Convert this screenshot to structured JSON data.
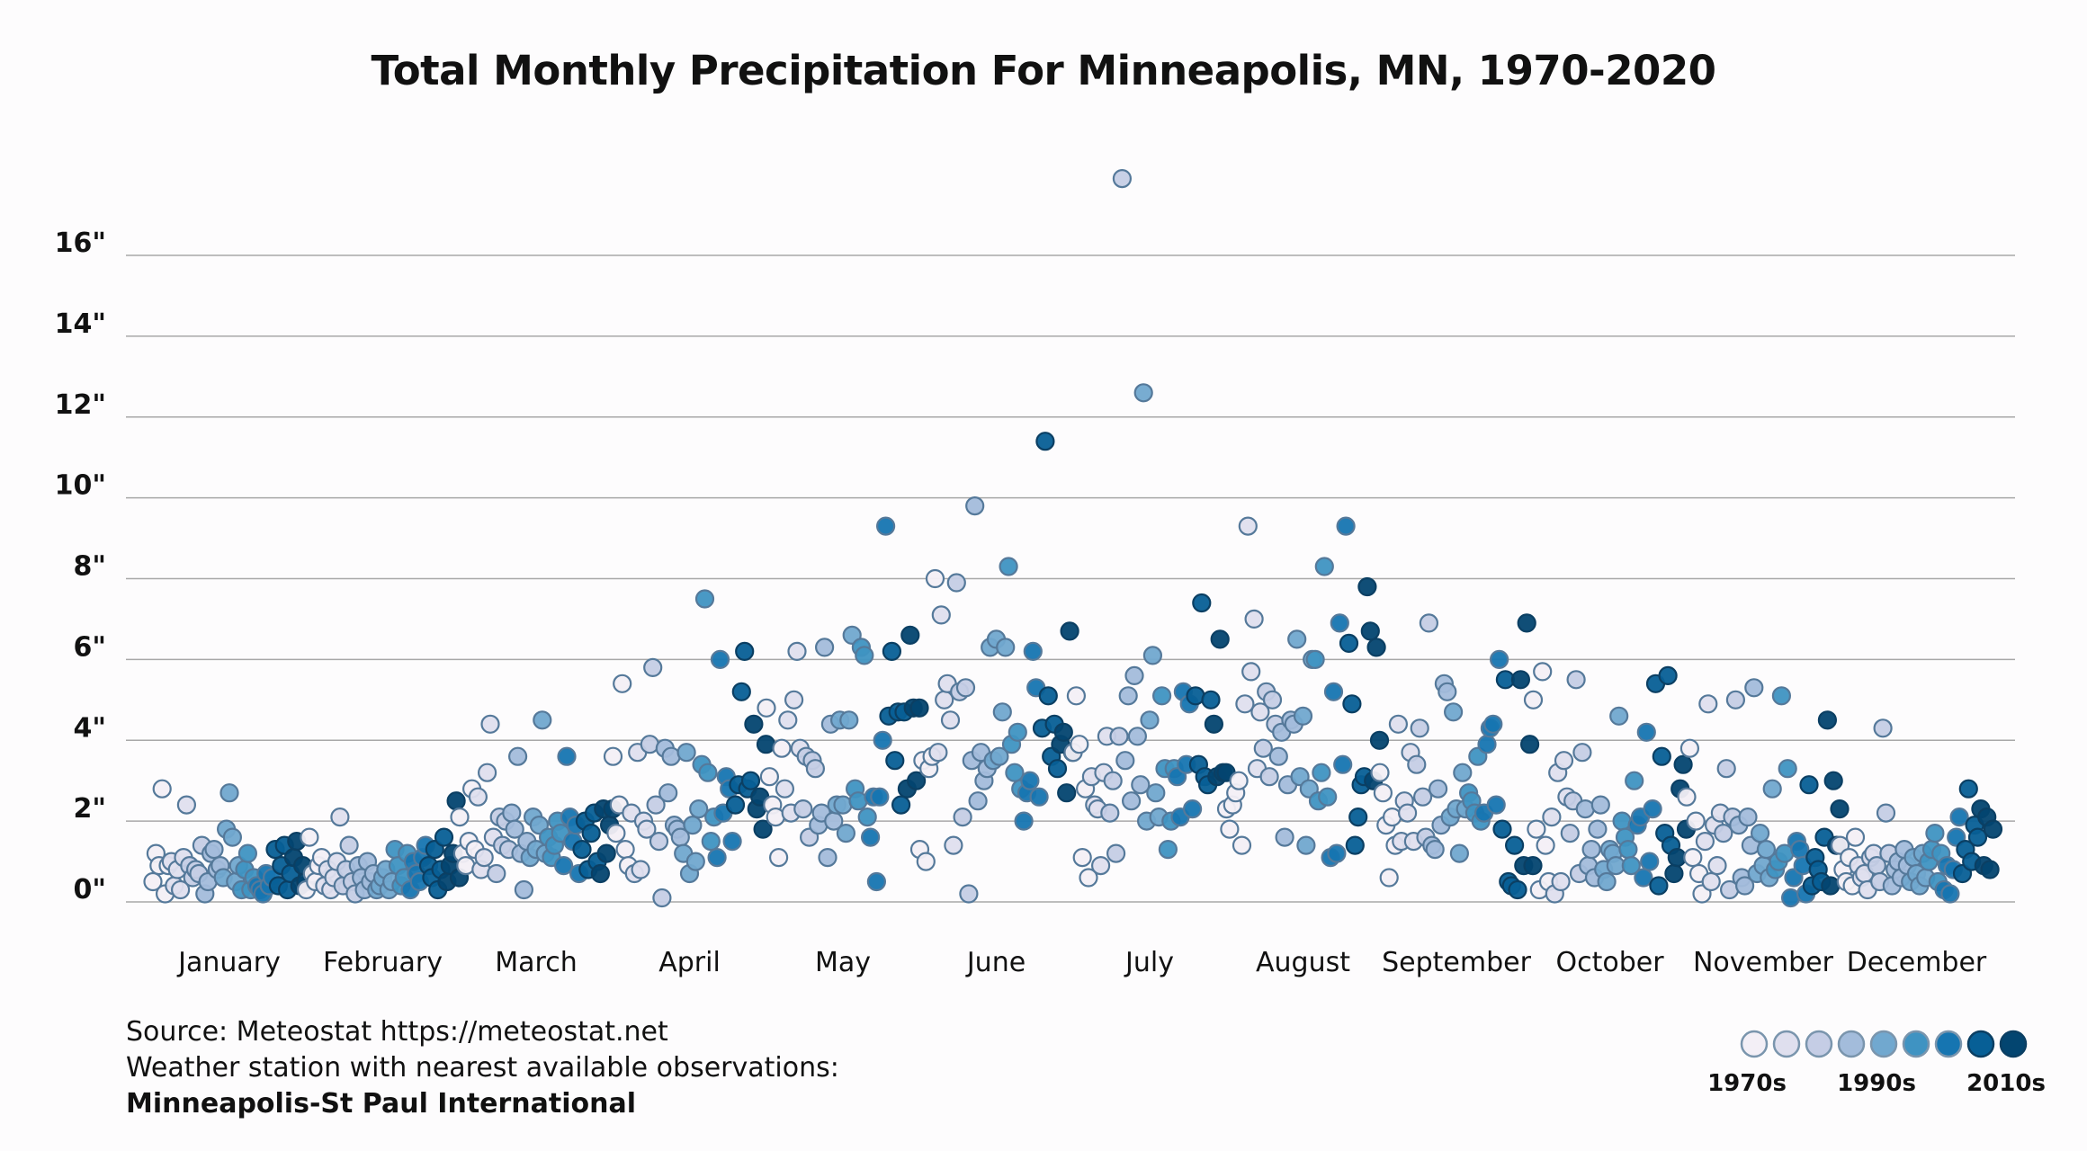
{
  "chart_data": {
    "type": "scatter",
    "title": "Total Monthly Precipitation For Minneapolis, MN, 1970-2020",
    "xlabel": "",
    "ylabel": "",
    "ylim": [
      0,
      17
    ],
    "yticks": [
      0,
      2,
      4,
      6,
      8,
      10,
      12,
      14,
      16
    ],
    "ytick_labels": [
      "0\"",
      "2\"",
      "4\"",
      "6\"",
      "8\"",
      "10\"",
      "12\"",
      "14\"",
      "16\""
    ],
    "grid": true,
    "categories": [
      "January",
      "February",
      "March",
      "April",
      "May",
      "June",
      "July",
      "August",
      "September",
      "October",
      "November",
      "December"
    ],
    "years": [
      1970,
      2020
    ],
    "legend": {
      "placement": "bottom-right",
      "labels": [
        "1970s",
        "1990s",
        "2010s"
      ],
      "colors": [
        "#f3eff6",
        "#dfdfee",
        "#c5cde5",
        "#a3bcdb",
        "#71a8cf",
        "#3f93c2",
        "#1675b1",
        "#075f96",
        "#034570"
      ]
    },
    "series": [
      {
        "name": "January",
        "values": [
          0.5,
          1.2,
          0.9,
          2.8,
          0.2,
          0.9,
          1.0,
          0.4,
          0.8,
          0.3,
          1.1,
          2.4,
          0.9,
          0.6,
          0.8,
          0.7,
          1.4,
          0.2,
          0.5,
          1.2,
          1.3,
          0.8,
          0.9,
          0.6,
          1.8,
          2.7,
          1.6,
          0.5,
          0.9,
          0.3,
          0.8,
          1.2,
          0.3,
          0.6,
          0.4,
          0.3,
          0.2,
          0.7,
          0.4,
          0.6,
          1.3,
          0.4,
          0.9,
          1.4,
          0.3,
          0.7,
          1.1,
          1.5,
          0.4,
          0.9,
          0.5
        ]
      },
      {
        "name": "February",
        "values": [
          0.3,
          1.6,
          0.7,
          0.5,
          0.9,
          1.1,
          0.4,
          0.8,
          0.3,
          0.6,
          1.0,
          2.1,
          0.4,
          0.8,
          1.4,
          0.5,
          0.2,
          0.9,
          0.6,
          0.3,
          1.0,
          0.5,
          0.7,
          0.3,
          0.4,
          0.6,
          0.8,
          0.3,
          0.5,
          1.3,
          0.9,
          0.4,
          0.6,
          1.2,
          0.3,
          1.0,
          0.7,
          0.5,
          1.1,
          1.4,
          0.9,
          0.6,
          1.3,
          0.3,
          0.8,
          1.6,
          0.5,
          0.9,
          1.2,
          2.5,
          0.6
        ]
      },
      {
        "name": "March",
        "values": [
          2.1,
          1.2,
          0.9,
          1.5,
          2.8,
          1.3,
          2.6,
          0.8,
          1.1,
          3.2,
          4.4,
          1.6,
          0.7,
          2.1,
          1.4,
          2.0,
          1.3,
          2.2,
          1.8,
          3.6,
          1.2,
          0.3,
          1.5,
          1.1,
          2.1,
          1.3,
          1.9,
          4.5,
          1.2,
          1.6,
          1.1,
          1.4,
          2.0,
          1.7,
          0.9,
          3.6,
          2.1,
          1.5,
          1.9,
          0.7,
          1.3,
          2.0,
          0.8,
          1.7,
          2.2,
          1.0,
          0.7,
          2.3,
          1.2,
          1.9,
          2.3
        ]
      },
      {
        "name": "April",
        "values": [
          3.6,
          1.7,
          2.4,
          5.4,
          1.3,
          0.9,
          2.2,
          0.7,
          3.7,
          0.8,
          2.0,
          1.8,
          3.9,
          5.8,
          2.4,
          1.5,
          0.1,
          3.8,
          2.7,
          3.6,
          1.9,
          1.8,
          1.6,
          1.2,
          3.7,
          0.7,
          1.9,
          1.0,
          2.3,
          3.4,
          7.5,
          3.2,
          1.5,
          2.1,
          1.1,
          6.0,
          2.2,
          3.1,
          2.8,
          1.5,
          2.4,
          2.9,
          5.2,
          6.2,
          2.8,
          3.0,
          4.4,
          2.3,
          2.6,
          1.8,
          3.9
        ]
      },
      {
        "name": "May",
        "values": [
          4.8,
          3.1,
          2.4,
          2.1,
          1.1,
          3.8,
          2.8,
          4.5,
          2.2,
          5.0,
          6.2,
          3.8,
          2.3,
          3.6,
          1.6,
          3.5,
          3.3,
          1.9,
          2.2,
          6.3,
          1.1,
          4.4,
          2.0,
          2.4,
          4.5,
          2.4,
          1.7,
          4.5,
          6.6,
          2.8,
          2.5,
          6.3,
          6.1,
          2.1,
          1.6,
          2.6,
          0.5,
          2.6,
          4.0,
          9.3,
          4.6,
          6.2,
          3.5,
          4.7,
          2.4,
          4.7,
          2.8,
          6.6,
          4.8,
          3.0,
          4.8
        ]
      },
      {
        "name": "June",
        "values": [
          1.3,
          3.5,
          1.0,
          3.3,
          3.6,
          8.0,
          3.7,
          7.1,
          5.0,
          5.4,
          4.5,
          1.4,
          7.9,
          5.2,
          2.1,
          5.3,
          0.2,
          3.5,
          9.8,
          2.5,
          3.7,
          3.0,
          3.3,
          6.3,
          3.5,
          6.5,
          3.6,
          4.7,
          6.3,
          8.3,
          3.9,
          3.2,
          4.2,
          2.8,
          2.0,
          2.7,
          3.0,
          6.2,
          5.3,
          2.6,
          4.3,
          11.4,
          5.1,
          3.6,
          4.4,
          3.3,
          3.9,
          4.2,
          2.7,
          6.7,
          3.7
        ]
      },
      {
        "name": "July",
        "values": [
          3.7,
          5.1,
          3.9,
          1.1,
          2.8,
          0.6,
          3.1,
          2.4,
          2.3,
          0.9,
          3.2,
          4.1,
          2.2,
          3.0,
          1.2,
          4.1,
          17.9,
          3.5,
          5.1,
          2.5,
          5.6,
          4.1,
          2.9,
          12.6,
          2.0,
          4.5,
          6.1,
          2.7,
          2.1,
          5.1,
          3.3,
          1.3,
          2.0,
          3.3,
          3.1,
          2.1,
          5.2,
          3.4,
          4.9,
          2.3,
          5.1,
          3.4,
          7.4,
          3.1,
          2.9,
          5.0,
          4.4,
          3.1,
          6.5,
          3.2,
          3.2
        ]
      },
      {
        "name": "August",
        "values": [
          2.3,
          1.8,
          2.4,
          2.7,
          3.0,
          1.4,
          4.9,
          9.3,
          5.7,
          7.0,
          3.3,
          4.7,
          3.8,
          5.2,
          3.1,
          5.0,
          4.4,
          3.6,
          4.2,
          1.6,
          2.9,
          4.5,
          4.4,
          6.5,
          3.1,
          4.6,
          1.4,
          2.8,
          6.0,
          6.0,
          2.5,
          3.2,
          8.3,
          2.6,
          1.1,
          5.2,
          1.2,
          6.9,
          3.4,
          9.3,
          6.4,
          4.9,
          1.4,
          2.1,
          2.9,
          3.1,
          7.8,
          6.7,
          3.0,
          6.3,
          4.0
        ]
      },
      {
        "name": "September",
        "values": [
          3.2,
          2.7,
          1.9,
          0.6,
          2.1,
          1.4,
          4.4,
          1.5,
          2.5,
          2.2,
          3.7,
          1.5,
          3.4,
          4.3,
          2.6,
          1.6,
          6.9,
          1.4,
          1.3,
          2.8,
          1.9,
          5.4,
          5.2,
          2.1,
          4.7,
          2.3,
          1.2,
          3.2,
          2.3,
          2.7,
          2.5,
          2.2,
          3.6,
          2.0,
          2.2,
          3.9,
          4.3,
          4.4,
          2.4,
          6.0,
          1.8,
          5.5,
          0.5,
          0.4,
          1.4,
          0.3,
          5.5,
          0.9,
          6.9,
          3.9,
          0.9
        ]
      },
      {
        "name": "October",
        "values": [
          5.0,
          1.8,
          0.3,
          5.7,
          1.4,
          0.5,
          2.1,
          0.2,
          3.2,
          0.5,
          3.5,
          2.6,
          1.7,
          2.5,
          5.5,
          0.7,
          3.7,
          2.3,
          0.9,
          1.3,
          0.6,
          1.8,
          2.4,
          0.8,
          0.5,
          1.3,
          1.2,
          0.9,
          4.6,
          2.0,
          1.6,
          1.3,
          0.9,
          3.0,
          1.9,
          2.1,
          0.6,
          4.2,
          1.0,
          2.3,
          5.4,
          0.4,
          3.6,
          1.7,
          5.6,
          1.4,
          0.7,
          1.1,
          2.8,
          3.4,
          1.8
        ]
      },
      {
        "name": "November",
        "values": [
          2.6,
          3.8,
          1.1,
          2.0,
          0.7,
          0.2,
          1.5,
          4.9,
          0.5,
          1.9,
          0.9,
          2.2,
          1.7,
          3.3,
          0.3,
          2.1,
          5.0,
          1.9,
          0.6,
          0.4,
          2.1,
          1.4,
          5.3,
          0.7,
          1.7,
          0.9,
          1.3,
          0.6,
          2.8,
          0.8,
          1.0,
          5.1,
          1.2,
          3.3,
          0.1,
          0.6,
          1.5,
          1.3,
          0.9,
          0.2,
          2.9,
          0.4,
          1.1,
          0.8,
          0.5,
          1.6,
          4.5,
          0.4,
          3.0,
          1.4,
          2.3
        ]
      },
      {
        "name": "December",
        "values": [
          1.4,
          0.8,
          0.5,
          1.1,
          0.4,
          1.6,
          0.9,
          0.6,
          0.7,
          0.3,
          1.1,
          1.2,
          0.9,
          0.5,
          4.3,
          2.2,
          1.2,
          0.4,
          0.8,
          1.0,
          0.6,
          1.3,
          0.9,
          0.5,
          1.1,
          0.7,
          0.4,
          1.2,
          0.6,
          1.0,
          1.3,
          1.7,
          0.5,
          1.2,
          0.3,
          0.9,
          0.2,
          0.8,
          1.6,
          2.1,
          0.7,
          1.3,
          2.8,
          1.0,
          1.9,
          1.6,
          2.3,
          0.9,
          2.1,
          0.8,
          1.8
        ]
      }
    ]
  },
  "footer": {
    "source_line": "Source: Meteostat https://meteostat.net",
    "station_line": "Weather station with nearest available observations:",
    "station_name": "Minneapolis-St Paul International"
  }
}
